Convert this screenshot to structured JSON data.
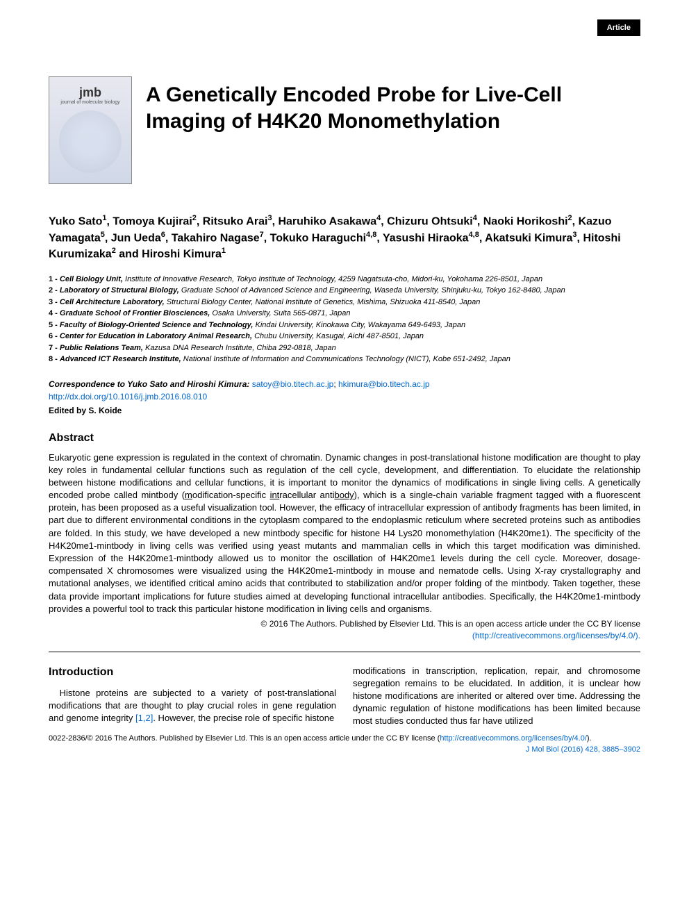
{
  "badge": "Article",
  "journal_logo": {
    "jmb": "jmb",
    "subtitle": "journal of molecular biology"
  },
  "title": "A Genetically Encoded Probe for Live-Cell Imaging of H4K20 Monomethylation",
  "authors_html": "Yuko Sato<sup>1</sup>, Tomoya Kujirai<sup>2</sup>, Ritsuko Arai<sup>3</sup>, Haruhiko Asakawa<sup>4</sup>, Chizuru Ohtsuki<sup>4</sup>, Naoki Horikoshi<sup>2</sup>, Kazuo Yamagata<sup>5</sup>, Jun Ueda<sup>6</sup>, Takahiro Nagase<sup>7</sup>, Tokuko Haraguchi<sup>4,8</sup>, Yasushi Hiraoka<sup>4,8</sup>, Akatsuki Kimura<sup>3</sup>, Hitoshi Kurumizaka<sup>2</sup> and Hiroshi Kimura<sup>1</sup>",
  "affiliations": [
    {
      "num": "1",
      "dept": "Cell Biology Unit,",
      "rest": " Institute of Innovative Research, Tokyo Institute of Technology, 4259 Nagatsuta-cho, Midori-ku, Yokohama 226-8501, Japan"
    },
    {
      "num": "2",
      "dept": "Laboratory of Structural Biology,",
      "rest": " Graduate School of Advanced Science and Engineering, Waseda University, Shinjuku-ku, Tokyo 162-8480, Japan"
    },
    {
      "num": "3",
      "dept": "Cell Architecture Laboratory,",
      "rest": " Structural Biology Center, National Institute of Genetics, Mishima, Shizuoka 411-8540, Japan"
    },
    {
      "num": "4",
      "dept": "Graduate School of Frontier Biosciences,",
      "rest": " Osaka University, Suita 565-0871, Japan"
    },
    {
      "num": "5",
      "dept": "Faculty of Biology-Oriented Science and Technology,",
      "rest": " Kindai University, Kinokawa City, Wakayama 649-6493, Japan"
    },
    {
      "num": "6",
      "dept": "Center for Education in Laboratory Animal Research,",
      "rest": " Chubu University, Kasugai, Aichi 487-8501, Japan"
    },
    {
      "num": "7",
      "dept": "Public Relations Team,",
      "rest": " Kazusa DNA Research Institute, Chiba 292-0818, Japan"
    },
    {
      "num": "8",
      "dept": "Advanced ICT Research Institute,",
      "rest": " National Institute of Information and Communications Technology (NICT), Kobe 651-2492, Japan"
    }
  ],
  "correspondence": {
    "label": "Correspondence to Yuko Sato and Hiroshi Kimura:",
    "email1": "satoy@bio.titech.ac.jp",
    "email2": "hkimura@bio.titech.ac.jp",
    "doi": "http://dx.doi.org/10.1016/j.jmb.2016.08.010",
    "edited": "Edited by S. Koide"
  },
  "abstract_heading": "Abstract",
  "abstract_text": "Eukaryotic gene expression is regulated in the context of chromatin. Dynamic changes in post-translational histone modification are thought to play key roles in fundamental cellular functions such as regulation of the cell cycle, development, and differentiation. To elucidate the relationship between histone modifications and cellular functions, it is important to monitor the dynamics of modifications in single living cells. A genetically encoded probe called mintbody (modification-specific intracellular antibody), which is a single-chain variable fragment tagged with a fluorescent protein, has been proposed as a useful visualization tool. However, the efficacy of intracellular expression of antibody fragments has been limited, in part due to different environmental conditions in the cytoplasm compared to the endoplasmic reticulum where secreted proteins such as antibodies are folded. In this study, we have developed a new mintbody specific for histone H4 Lys20 monomethylation (H4K20me1). The specificity of the H4K20me1-mintbody in living cells was verified using yeast mutants and mammalian cells in which this target modification was diminished. Expression of the H4K20me1-mintbody allowed us to monitor the oscillation of H4K20me1 levels during the cell cycle. Moreover, dosage-compensated X chromosomes were visualized using the H4K20me1-mintbody in mouse and nematode cells. Using X-ray crystallography and mutational analyses, we identified critical amino acids that contributed to stabilization and/or proper folding of the mintbody. Taken together, these data provide important implications for future studies aimed at developing functional intracellular antibodies. Specifically, the H4K20me1-mintbody provides a powerful tool to track this particular histone modification in living cells and organisms.",
  "license_line1": "© 2016 The Authors. Published by Elsevier Ltd. This is an open access article under the CC BY license",
  "license_url": "(http://creativecommons.org/licenses/by/4.0/).",
  "intro_heading": "Introduction",
  "intro_col1": "Histone proteins are subjected to a variety of post-translational modifications that are thought to play crucial roles in gene regulation and genome integrity [1,2]. However, the precise role of specific histone",
  "intro_col2": "modifications in transcription, replication, repair, and chromosome segregation remains to be elucidated. In addition, it is unclear how histone modifications are inherited or altered over time. Addressing the dynamic regulation of histone modifications has been limited because most studies conducted thus far have utilized",
  "footer": {
    "copyright": "0022-2836/© 2016 The Authors. Published by Elsevier Ltd. This is an open access article under the CC BY license (",
    "license_url": "http://creativecommons.org/licenses/by/4.0/",
    "close": ").",
    "citation": "J Mol Biol (2016) 428, 3885–3902"
  },
  "colors": {
    "link": "#0066cc",
    "badge_bg": "#000000",
    "badge_fg": "#ffffff",
    "text": "#000000"
  },
  "typography": {
    "title_fontsize": 30,
    "authors_fontsize": 16,
    "body_fontsize": 13,
    "aff_fontsize": 11,
    "heading_fontsize": 16
  }
}
